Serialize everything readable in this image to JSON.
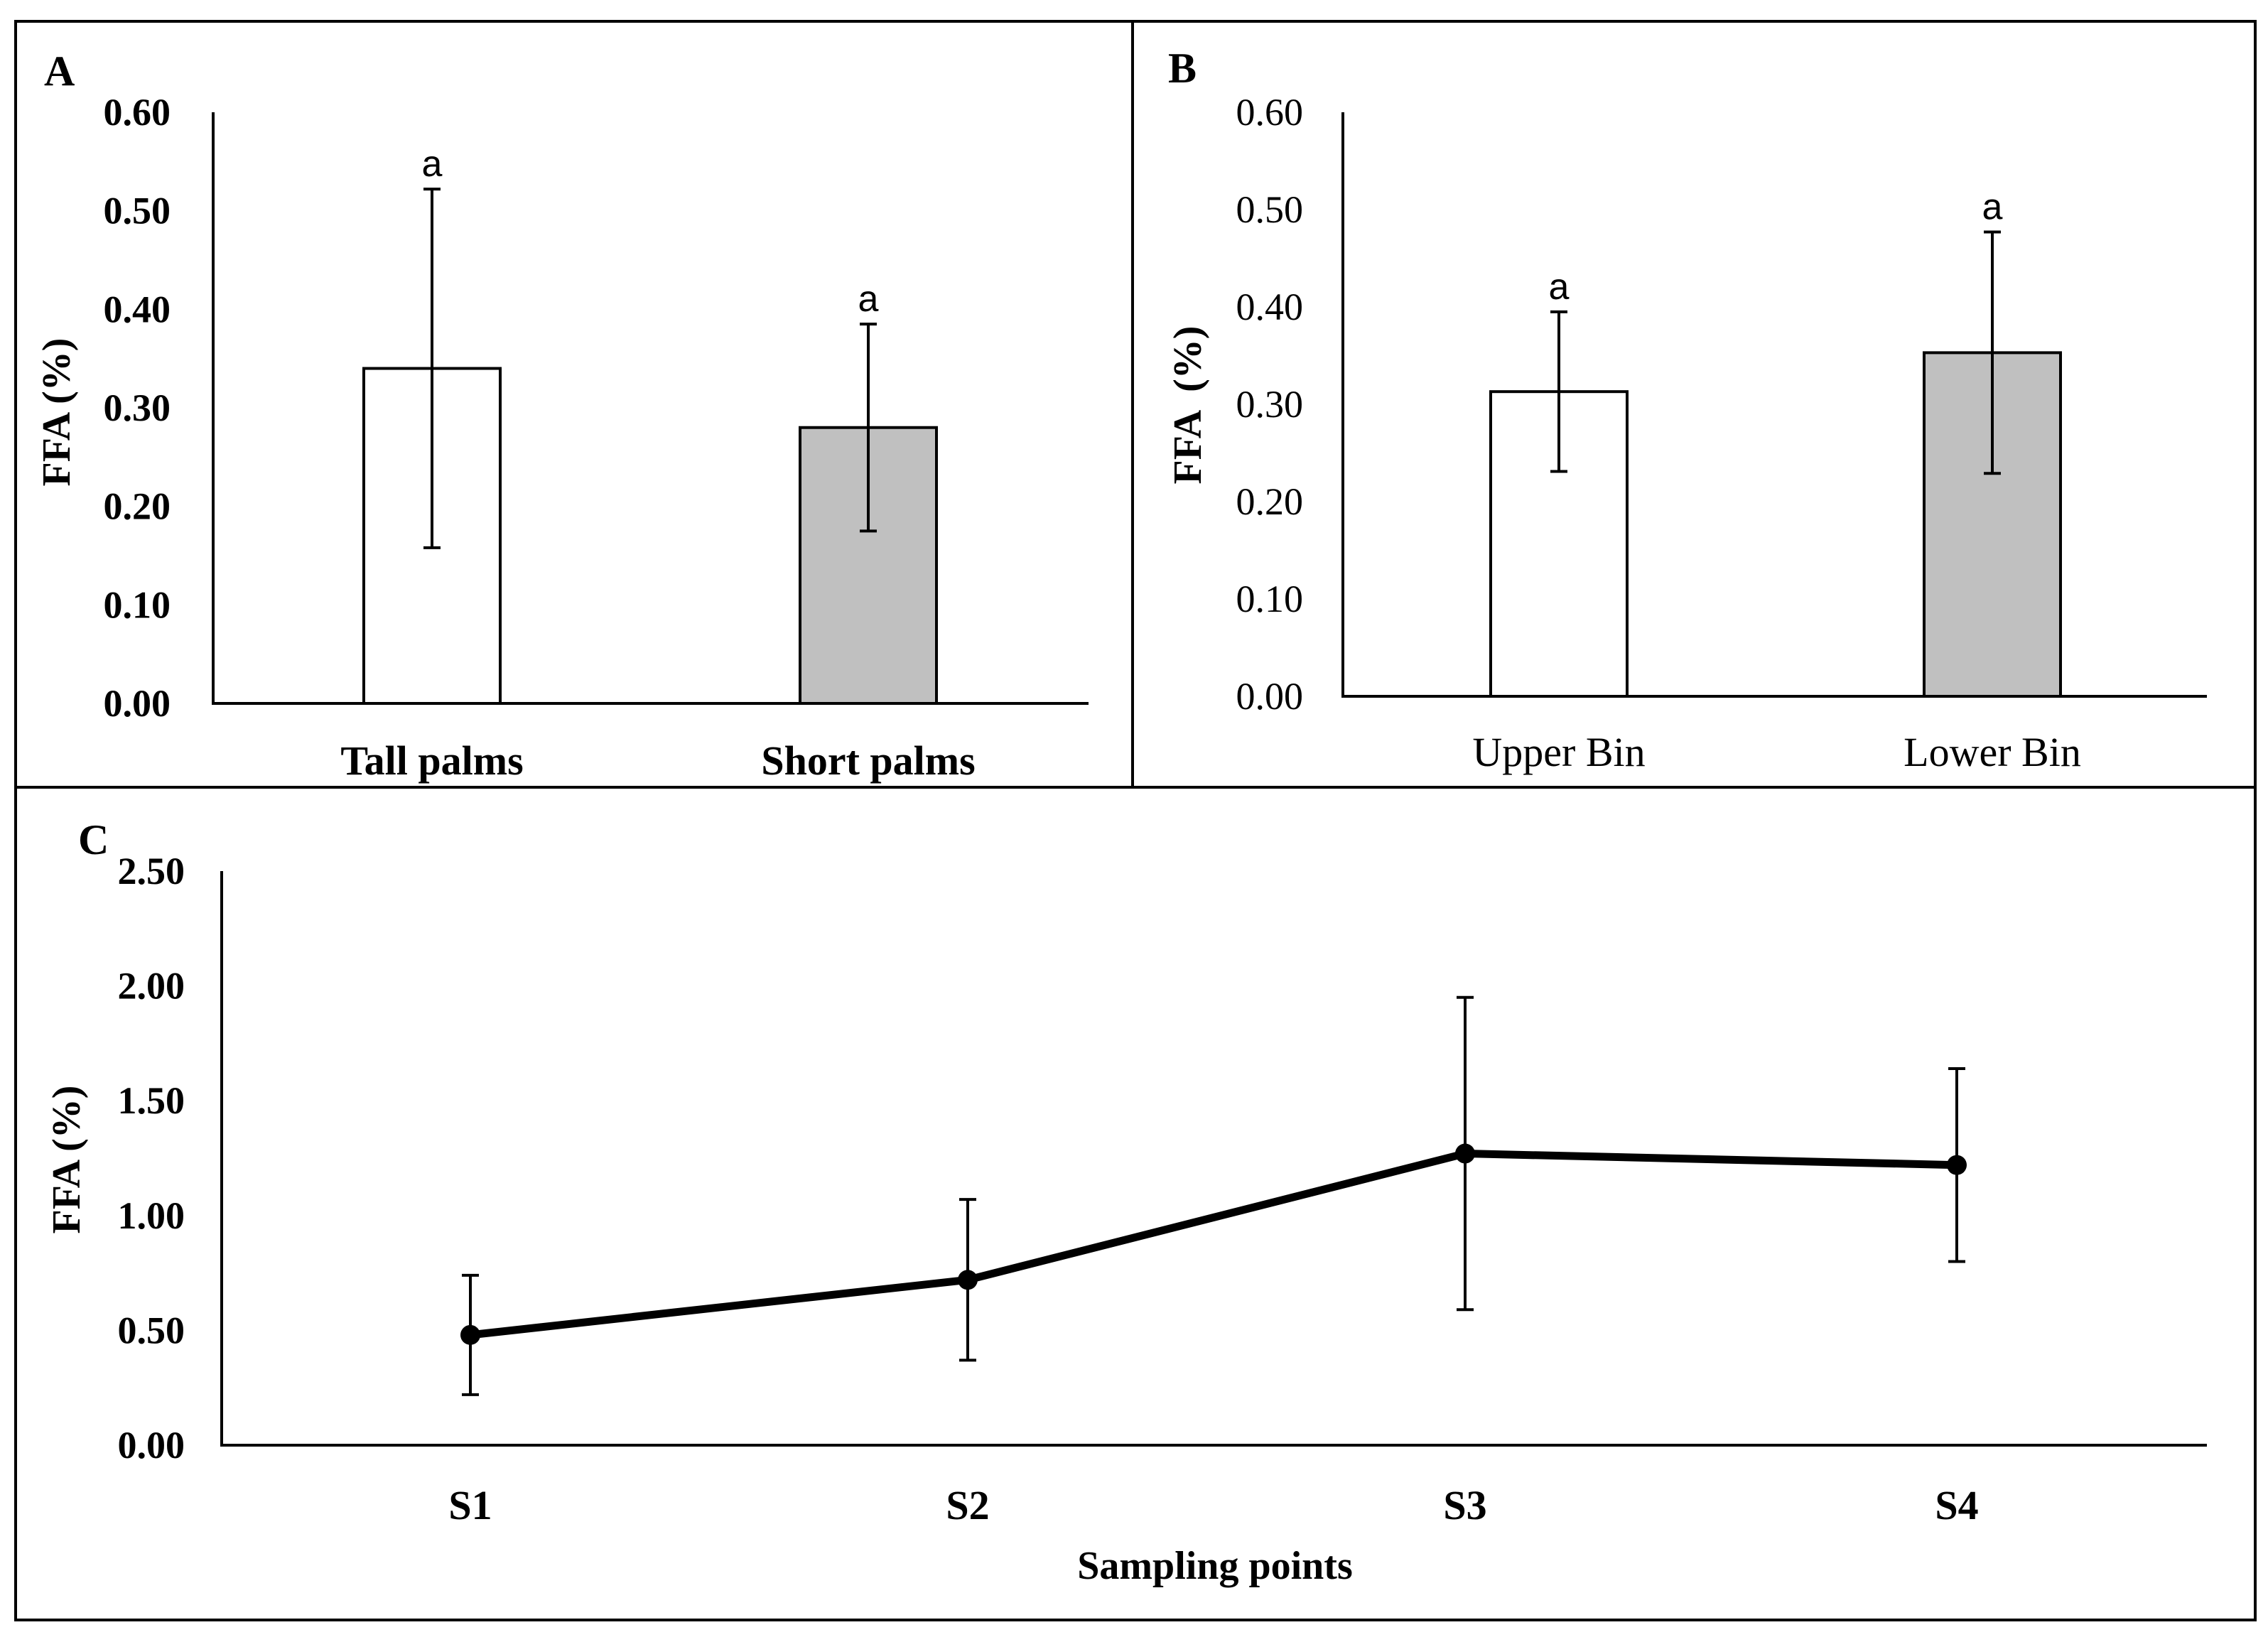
{
  "chart_data": [
    {
      "panel": "A",
      "type": "bar",
      "ylabel": "FFA (%)",
      "xlabel": "",
      "ylim": [
        0,
        0.6
      ],
      "yticks": [
        "0.00",
        "0.10",
        "0.20",
        "0.30",
        "0.40",
        "0.50",
        "0.60"
      ],
      "categories": [
        "Tall palms",
        "Short palms"
      ],
      "values": [
        0.34,
        0.28
      ],
      "errors": [
        0.182,
        0.105
      ],
      "letters": [
        "a",
        "a"
      ],
      "colors": [
        "#ffffff",
        "#c0c0c0"
      ],
      "bold_ticks": true
    },
    {
      "panel": "B",
      "type": "bar",
      "ylabel": "FFA  (%)",
      "xlabel": "",
      "ylim": [
        0,
        0.6
      ],
      "yticks": [
        "0.00",
        "0.10",
        "0.20",
        "0.30",
        "0.40",
        "0.50",
        "0.60"
      ],
      "categories": [
        "Upper Bin",
        "Lower Bin"
      ],
      "values": [
        0.313,
        0.353
      ],
      "errors": [
        0.082,
        0.124
      ],
      "letters": [
        "a",
        "a"
      ],
      "colors": [
        "#ffffff",
        "#c0c0c0"
      ],
      "bold_ticks": false
    },
    {
      "panel": "C",
      "type": "line",
      "ylabel": "FFA (%)",
      "xlabel": "Sampling points",
      "ylim": [
        0,
        2.5
      ],
      "yticks": [
        "0.00",
        "0.50",
        "1.00",
        "1.50",
        "2.00",
        "2.50"
      ],
      "categories": [
        "S1",
        "S2",
        "S3",
        "S4"
      ],
      "values": [
        0.48,
        0.72,
        1.27,
        1.22
      ],
      "errors": [
        0.26,
        0.35,
        0.68,
        0.42
      ],
      "bold_ticks": true
    }
  ]
}
